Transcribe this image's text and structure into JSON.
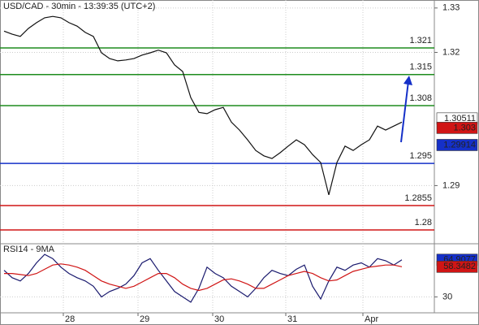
{
  "chart_data": [
    {
      "type": "line",
      "title": "USD/CAD - 30min - 13:39:35 (UTC+2)",
      "ylim": [
        1.2769,
        1.3318
      ],
      "yticks": [
        1.33,
        1.32,
        1.29
      ],
      "xlim": [
        -0.5,
        53
      ],
      "xticks": [
        {
          "value": 7.3,
          "label": "28"
        },
        {
          "value": 16.5,
          "label": "29"
        },
        {
          "value": 25.7,
          "label": "30"
        },
        {
          "value": 34.7,
          "label": "31"
        },
        {
          "value": 44.2,
          "label": "Apr"
        }
      ],
      "series": [
        {
          "name": "USD/CAD",
          "color": "#111111",
          "values": [
            1.3248,
            1.3241,
            1.3236,
            1.3254,
            1.3267,
            1.3278,
            1.3281,
            1.3278,
            1.3267,
            1.3259,
            1.3245,
            1.3236,
            1.3199,
            1.3186,
            1.3181,
            1.3183,
            1.3186,
            1.3194,
            1.3199,
            1.3205,
            1.3199,
            1.3172,
            1.3157,
            1.3098,
            1.3065,
            1.3062,
            1.3071,
            1.3076,
            1.3043,
            1.3025,
            1.3003,
            1.2979,
            1.2967,
            1.2961,
            1.2974,
            1.2989,
            1.3003,
            1.2992,
            1.297,
            1.2952,
            1.2879,
            1.2952,
            1.2989,
            1.2979,
            1.2992,
            1.3003,
            1.3034,
            1.3025,
            1.3034,
            1.3043
          ]
        }
      ],
      "levels": [
        {
          "value": 1.321,
          "color": "#1e8c1e"
        },
        {
          "value": 1.315,
          "color": "#1e8c1e"
        },
        {
          "value": 1.308,
          "color": "#1e8c1e"
        },
        {
          "value": 1.295,
          "color": "#1530c8"
        },
        {
          "value": 1.2855,
          "color": "#d01515"
        },
        {
          "value": 1.28,
          "color": "#d01515"
        }
      ],
      "markers": [
        {
          "value": 1.30511,
          "color": "#ffffff",
          "text_color": "#000000"
        },
        {
          "value": 1.303,
          "color": "#d01515",
          "text_color": "#ffffff"
        },
        {
          "value": 1.29914,
          "color": "#1530c8",
          "text_color": "#ffffff"
        }
      ]
    },
    {
      "type": "line",
      "title": "RSI14 - 9MA",
      "ylim": [
        15,
        80
      ],
      "yticks": [
        30
      ],
      "series": [
        {
          "name": "RSI14",
          "color": "#1a1a6e",
          "values": [
            55,
            48,
            45,
            52,
            62,
            70,
            66,
            58,
            52,
            48,
            45,
            40,
            30,
            35,
            38,
            42,
            50,
            62,
            66,
            55,
            45,
            35,
            30,
            25,
            38,
            58,
            52,
            48,
            40,
            35,
            30,
            38,
            48,
            55,
            52,
            50,
            56,
            60,
            40,
            28,
            45,
            58,
            55,
            60,
            62,
            58,
            66,
            64,
            60,
            64.9077
          ]
        },
        {
          "name": "9MA",
          "color": "#d01515",
          "values": [
            52,
            52,
            51,
            50,
            52,
            56,
            60,
            61,
            60,
            58,
            55,
            50,
            45,
            42,
            40,
            38,
            40,
            44,
            48,
            52,
            52,
            48,
            42,
            38,
            36,
            38,
            42,
            46,
            47,
            45,
            42,
            38,
            38,
            42,
            46,
            50,
            52,
            54,
            52,
            48,
            45,
            46,
            50,
            54,
            56,
            58,
            59,
            60,
            60,
            58.3482
          ]
        }
      ],
      "markers": [
        {
          "value": 64.9077,
          "color": "#1530c8",
          "text_color": "#ffffff"
        },
        {
          "value": 58.3482,
          "color": "#d01515",
          "text_color": "#ffffff"
        }
      ]
    }
  ]
}
